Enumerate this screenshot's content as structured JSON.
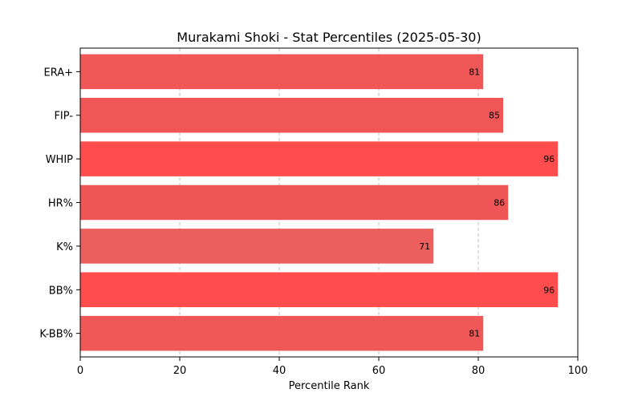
{
  "chart_data": {
    "type": "bar",
    "orientation": "horizontal",
    "title": "Murakami Shoki - Stat Percentiles (2025-05-30)",
    "xlabel": "Percentile Rank",
    "ylabel": "",
    "xlim": [
      0,
      100
    ],
    "xticks": [
      "0",
      "20",
      "40",
      "60",
      "80",
      "100"
    ],
    "grid": "x-dashed",
    "categories": [
      "ERA+",
      "FIP-",
      "WHIP",
      "HR%",
      "K%",
      "BB%",
      "K-BB%"
    ],
    "values": [
      81,
      85,
      96,
      86,
      71,
      96,
      81
    ],
    "colors": [
      "#f05858",
      "#f05656",
      "#ff4d4d",
      "#f05555",
      "#eb605d",
      "#ff4d4d",
      "#f05858"
    ]
  }
}
